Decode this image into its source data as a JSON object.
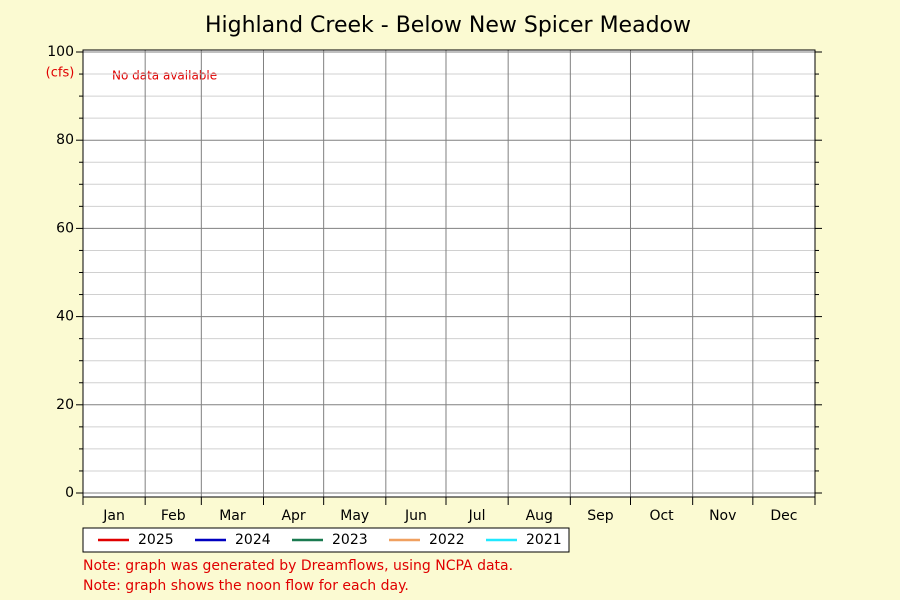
{
  "chart_data": {
    "type": "line",
    "title": "Highland Creek - Below New Spicer Meadow",
    "y_unit": "(cfs)",
    "annotation": "No data available",
    "categories": [
      "Jan",
      "Feb",
      "Mar",
      "Apr",
      "May",
      "Jun",
      "Jul",
      "Aug",
      "Sep",
      "Oct",
      "Nov",
      "Dec"
    ],
    "series": [
      {
        "name": "2025",
        "color": "#e00000",
        "values": [
          null,
          null,
          null,
          null,
          null,
          null,
          null,
          null,
          null,
          null,
          null,
          null
        ]
      },
      {
        "name": "2024",
        "color": "#0000c0",
        "values": [
          null,
          null,
          null,
          null,
          null,
          null,
          null,
          null,
          null,
          null,
          null,
          null
        ]
      },
      {
        "name": "2023",
        "color": "#1a7a50",
        "values": [
          null,
          null,
          null,
          null,
          null,
          null,
          null,
          null,
          null,
          null,
          null,
          null
        ]
      },
      {
        "name": "2022",
        "color": "#f0a060",
        "values": [
          null,
          null,
          null,
          null,
          null,
          null,
          null,
          null,
          null,
          null,
          null,
          null
        ]
      },
      {
        "name": "2021",
        "color": "#20e8ff",
        "values": [
          null,
          null,
          null,
          null,
          null,
          null,
          null,
          null,
          null,
          null,
          null,
          null
        ]
      }
    ],
    "ylim": [
      0,
      100
    ],
    "yticks": [
      0,
      20,
      40,
      60,
      80,
      100
    ],
    "y_minor_ticks": [
      5,
      10,
      15,
      25,
      30,
      35,
      45,
      50,
      55,
      65,
      70,
      75,
      85,
      90,
      95
    ],
    "grid": true,
    "notes": [
      "Note: graph was generated by Dreamflows, using NCPA data.",
      "Note: graph shows the noon flow for each day."
    ]
  }
}
